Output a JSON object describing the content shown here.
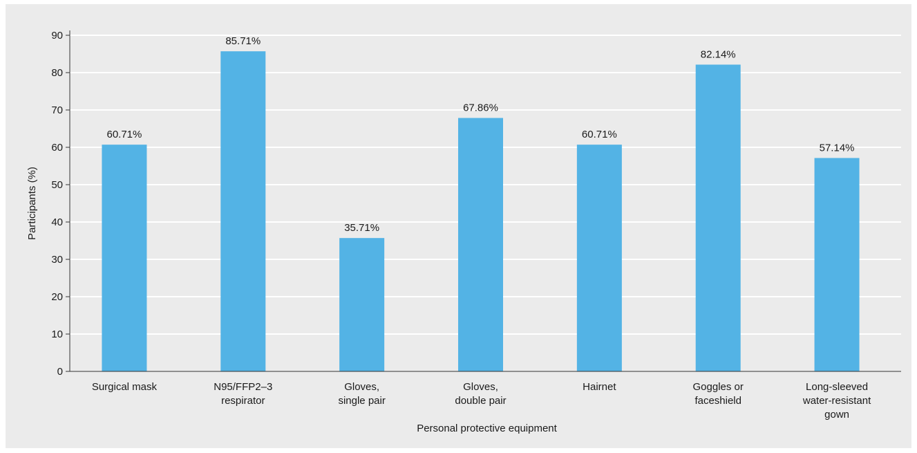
{
  "chart_data": {
    "type": "bar",
    "categories": [
      [
        "Surgical mask"
      ],
      [
        "N95/FFP2–3",
        "respirator"
      ],
      [
        "Gloves,",
        "single pair"
      ],
      [
        "Gloves,",
        "double pair"
      ],
      [
        "Hairnet"
      ],
      [
        "Goggles or",
        "faceshield"
      ],
      [
        "Long-sleeved",
        "water-resistant",
        "gown"
      ]
    ],
    "values": [
      60.71,
      85.71,
      35.71,
      67.86,
      60.71,
      82.14,
      57.14
    ],
    "data_labels": [
      "60.71%",
      "85.71%",
      "35.71%",
      "67.86%",
      "60.71%",
      "82.14%",
      "57.14%"
    ],
    "title": "",
    "xlabel": "Personal protective equipment",
    "ylabel": "Participants (%)",
    "ylim": [
      0,
      90
    ],
    "yticks": [
      0,
      10,
      20,
      30,
      40,
      50,
      60,
      70,
      80,
      90
    ],
    "grid": true,
    "bar_color": "#53b3e5",
    "grid_color": "#ffffff"
  }
}
